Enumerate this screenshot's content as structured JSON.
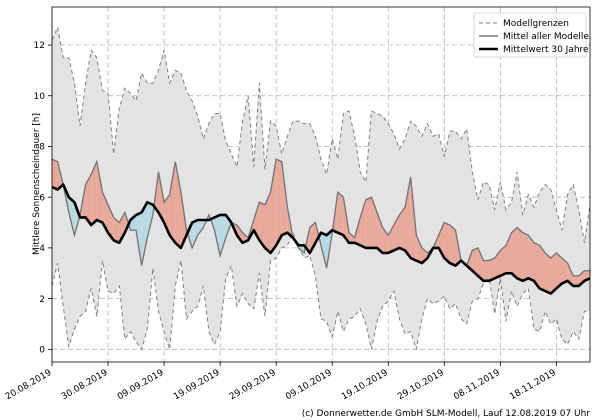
{
  "chart_data": {
    "type": "area",
    "ylabel": "Mittlere Sonnenscheindauer [h]",
    "ylim": [
      -0.5,
      13.5
    ],
    "yticks": [
      0,
      2,
      4,
      6,
      8,
      10,
      12
    ],
    "x_start": "2019-08-20",
    "x_days": 97,
    "x_tick_labels": [
      "20.08.2019",
      "30.08.2019",
      "09.09.2019",
      "19.09.2019",
      "29.09.2019",
      "09.10.2019",
      "19.10.2019",
      "29.10.2019",
      "08.11.2019",
      "18.11.2019"
    ],
    "grid": true,
    "legend_position": "top-right",
    "colors": {
      "band_fill": "#e3e3e3",
      "band_edge": "#808080",
      "above_fill": "#e8a99b",
      "below_fill": "#b9d9e3",
      "mean_models": "#777777",
      "mean_30y": "#000000"
    },
    "series": [
      {
        "name": "Modellgrenzen (oben)",
        "values": [
          12.2,
          12.7,
          11.5,
          11.5,
          10.5,
          8.8,
          10.5,
          11.8,
          11.5,
          10.2,
          10.1,
          7.7,
          9.5,
          10.3,
          10.1,
          9.8,
          10.9,
          10.5,
          10.5,
          11.0,
          11.8,
          10.5,
          11.0,
          10.9,
          10.2,
          9.8,
          9.2,
          8.3,
          8.9,
          9.3,
          9.3,
          8.2,
          7.7,
          7.2,
          9.0,
          10.0,
          7.2,
          10.5,
          7.1,
          9.0,
          8.8,
          7.7,
          8.4,
          9.0,
          9.0,
          8.9,
          8.9,
          8.4,
          7.5,
          6.9,
          8.3,
          7.5,
          9.3,
          9.4,
          8.4,
          7.0,
          6.6,
          9.4,
          9.3,
          9.2,
          8.9,
          8.5,
          7.9,
          8.3,
          9.0,
          8.8,
          8.4,
          8.9,
          8.4,
          8.5,
          7.6,
          8.6,
          8.6,
          8.3,
          8.7,
          7.0,
          5.9,
          6.6,
          6.5,
          5.5,
          6.6,
          5.5,
          5.8,
          7.0,
          5.3,
          6.1,
          5.6,
          6.2,
          6.5,
          6.3,
          5.5,
          4.7,
          6.1,
          6.5,
          5.5,
          4.2,
          5.7
        ]
      },
      {
        "name": "Modellgrenzen (unten)",
        "values": [
          2.5,
          3.4,
          1.7,
          0.1,
          0.8,
          1.3,
          1.5,
          2.4,
          1.3,
          3.5,
          2.3,
          2.2,
          2.5,
          0.4,
          0.7,
          0.3,
          0.0,
          0.8,
          3.2,
          1.5,
          0.7,
          0.0,
          2.5,
          3.5,
          1.2,
          1.5,
          1.7,
          2.5,
          0.7,
          0.2,
          0.7,
          2.8,
          3.3,
          1.7,
          2.2,
          1.8,
          1.6,
          3.0,
          1.3,
          3.5,
          3.6,
          4.0,
          4.1,
          4.6,
          4.0,
          3.6,
          3.7,
          2.9,
          1.2,
          1.1,
          0.5,
          1.5,
          0.7,
          1.2,
          1.3,
          1.6,
          1.0,
          0.0,
          1.1,
          1.7,
          1.9,
          2.3,
          1.2,
          0.6,
          0.7,
          0.0,
          1.2,
          2.0,
          1.8,
          1.9,
          2.1,
          1.6,
          1.8,
          1.2,
          1.0,
          1.9,
          2.0,
          2.6,
          2.8,
          1.4,
          2.8,
          1.1,
          2.3,
          1.7,
          2.2,
          2.4,
          0.8,
          0.7,
          1.5,
          1.0,
          1.2,
          0.4,
          0.2,
          0.7,
          0.4,
          1.5,
          1.5
        ]
      },
      {
        "name": "Mittel aller Modelle",
        "values": [
          7.5,
          7.4,
          6.5,
          5.4,
          4.5,
          5.3,
          6.5,
          6.9,
          7.4,
          6.2,
          5.7,
          5.2,
          5.0,
          5.4,
          4.7,
          4.7,
          3.3,
          4.4,
          5.3,
          7.0,
          5.8,
          6.1,
          7.4,
          6.2,
          4.7,
          4.0,
          4.5,
          4.8,
          5.3,
          4.7,
          3.7,
          4.4,
          5.0,
          4.9,
          4.6,
          4.4,
          5.1,
          5.8,
          5.7,
          6.2,
          7.5,
          7.4,
          5.6,
          4.4,
          4.0,
          3.8,
          4.8,
          5.0,
          4.1,
          3.2,
          4.6,
          6.2,
          6.0,
          4.6,
          4.4,
          5.2,
          5.9,
          6.0,
          5.4,
          4.8,
          4.5,
          4.9,
          5.3,
          5.6,
          6.8,
          4.5,
          4.0,
          3.8,
          4.0,
          4.5,
          5.0,
          4.9,
          4.7,
          3.5,
          3.3,
          3.9,
          4.0,
          3.5,
          3.5,
          3.6,
          3.9,
          4.1,
          4.6,
          4.8,
          4.6,
          4.5,
          4.2,
          4.1,
          3.8,
          3.6,
          3.8,
          3.6,
          3.4,
          2.9,
          2.9,
          3.1,
          3.1
        ]
      },
      {
        "name": "Mittelwert 30 Jahre",
        "values": [
          6.4,
          6.3,
          6.5,
          6.0,
          5.8,
          5.2,
          5.2,
          4.9,
          5.1,
          5.0,
          4.6,
          4.3,
          4.2,
          4.6,
          5.1,
          5.3,
          5.4,
          5.8,
          5.7,
          5.4,
          5.0,
          4.5,
          4.2,
          4.0,
          4.5,
          5.0,
          5.1,
          5.1,
          5.1,
          5.2,
          5.3,
          5.3,
          5.0,
          4.5,
          4.2,
          4.3,
          4.7,
          4.3,
          4.0,
          3.8,
          4.1,
          4.5,
          4.6,
          4.4,
          4.1,
          4.1,
          3.8,
          4.2,
          4.6,
          4.5,
          4.7,
          4.6,
          4.5,
          4.2,
          4.2,
          4.1,
          4.0,
          4.0,
          4.0,
          3.8,
          3.8,
          3.9,
          4.0,
          3.9,
          3.6,
          3.5,
          3.4,
          3.6,
          4.0,
          4.0,
          3.6,
          3.4,
          3.3,
          3.5,
          3.3,
          3.1,
          2.9,
          2.7,
          2.7,
          2.8,
          2.9,
          3.0,
          3.0,
          2.8,
          2.7,
          2.8,
          2.7,
          2.4,
          2.3,
          2.2,
          2.4,
          2.6,
          2.7,
          2.5,
          2.5,
          2.7,
          2.8
        ]
      }
    ],
    "legend": [
      {
        "label": "Modellgrenzen",
        "style": "dashed",
        "color": "#808080"
      },
      {
        "label": "Mittel aller Modelle",
        "style": "solid",
        "color": "#777777"
      },
      {
        "label": "Mittelwert 30 Jahre",
        "style": "thick",
        "color": "#000000"
      }
    ]
  },
  "footer": "(c) Donnerwetter.de GmbH SLM-Modell, Lauf 12.08.2019 07 Uhr"
}
